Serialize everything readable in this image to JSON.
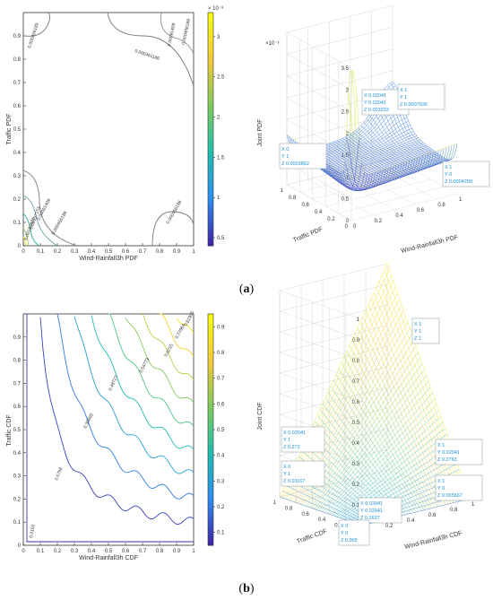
{
  "panels": {
    "a": {
      "label_open": "(",
      "label_letter": "a",
      "label_close": ")"
    },
    "b": {
      "label_open": "(",
      "label_letter": "b",
      "label_close": ")"
    }
  },
  "chart_data": [
    {
      "type": "contour",
      "panel": "a-left",
      "xlabel": "Wind-Rainfall3h PDF",
      "ylabel": "Traffic PDF",
      "xlim": [
        0,
        1
      ],
      "ylim": [
        0,
        1
      ],
      "xticks": [
        "0",
        "0.1",
        "0.2",
        "0.3",
        "0.4",
        "0.5",
        "0.6",
        "0.7",
        "0.8",
        "0.9",
        "1"
      ],
      "yticks": [
        "0",
        "0.1",
        "0.2",
        "0.3",
        "0.4",
        "0.5",
        "0.6",
        "0.7",
        "0.8",
        "0.9"
      ],
      "colorbar": {
        "exponent": "× 10⁻³",
        "ticks": [
          "0.5",
          "1",
          "1.5",
          "2",
          "2.5",
          "3"
        ],
        "range": [
          0.4,
          3.3
        ],
        "colors": [
          "#3e26a8",
          "#2d8ef0",
          "#1ebfb0",
          "#7fcb5d",
          "#f2c93b",
          "#f9fb0e"
        ]
      },
      "contour_labels": [
        "0.000456189",
        "0.000461186",
        "0.00091409",
        "0.000456189",
        "0.00091409",
        "0.000456189",
        "0.000456189",
        "0.00137153",
        "0.00183428"
      ]
    },
    {
      "type": "surface",
      "panel": "a-right",
      "xlabel": "Wind-Rainfall3h PDF",
      "ylabel": "Traffic PDF",
      "zlabel": "Joint PDF",
      "zexponent": "×10⁻³",
      "zticks": [
        "0",
        "0.5",
        "1",
        "1.5",
        "2",
        "2.5",
        "3",
        "3.5"
      ],
      "xticks": [
        "0",
        "0.2",
        "0.4",
        "0.6",
        "0.8",
        "1"
      ],
      "yticks": [
        "0",
        "0.2",
        "0.4",
        "0.6",
        "0.8",
        "1"
      ],
      "datatips": [
        {
          "x": "X 0.02041",
          "y": "Y 0.02041",
          "z": "Z 0.003293"
        },
        {
          "x": "X 1",
          "y": "Y 1",
          "z": "Z 0.0007936"
        },
        {
          "x": "X 0",
          "y": "Y 1",
          "z": "Z 0.0003862"
        },
        {
          "x": "X 1",
          "y": "Y 0",
          "z": "Z 0.0004299"
        }
      ]
    },
    {
      "type": "contour",
      "panel": "b-left",
      "xlabel": "Wind-Rainfall3h CDF",
      "ylabel": "Traffic CDF",
      "xlim": [
        0,
        1
      ],
      "ylim": [
        0,
        1
      ],
      "xticks": [
        "0",
        "0.1",
        "0.2",
        "0.3",
        "0.4",
        "0.5",
        "0.6",
        "0.7",
        "0.8",
        "0.9",
        "1"
      ],
      "yticks": [
        "0",
        "0.1",
        "0.2",
        "0.3",
        "0.4",
        "0.5",
        "0.6",
        "0.7",
        "0.8",
        "0.9"
      ],
      "colorbar": {
        "ticks": [
          "0.1",
          "0.2",
          "0.3",
          "0.4",
          "0.5",
          "0.6",
          "0.7",
          "0.8",
          "0.9"
        ],
        "range": [
          0.05,
          0.95
        ],
        "colors": [
          "#3e26a8",
          "#2d8ef0",
          "#1ebfb0",
          "#7fcb5d",
          "#f2c93b",
          "#f9fb0e"
        ]
      },
      "levels": [
        0.1,
        0.2,
        0.3,
        0.4,
        0.5,
        0.6,
        0.7,
        0.8,
        0.9
      ],
      "contour_labels": [
        "0.0101",
        "0.0756",
        "0.0756",
        "0.39602",
        "0.48727",
        "0.54773",
        "0.6215",
        "0.72964",
        "0.81905"
      ]
    },
    {
      "type": "surface",
      "panel": "b-right",
      "xlabel": "Wind-Rainfall3h CDF",
      "ylabel": "Traffic CDF",
      "zlabel": "Joint CDF",
      "zticks": [
        "0",
        "0.1",
        "0.2",
        "0.3",
        "0.4",
        "0.5",
        "0.6",
        "0.7",
        "0.8",
        "0.9",
        "1"
      ],
      "xticks": [
        "0",
        "0.2",
        "0.4",
        "0.6",
        "0.8",
        "1"
      ],
      "yticks": [
        "0",
        "0.2",
        "0.4",
        "0.6",
        "0.8",
        "1"
      ],
      "datatips": [
        {
          "x": "X 1",
          "y": "Y 1",
          "z": "Z 1"
        },
        {
          "x": "X 0.02041",
          "y": "Y 1",
          "z": "Z 0.272"
        },
        {
          "x": "X 1",
          "y": "Y 0.02041",
          "z": "Z 0.2763"
        },
        {
          "x": "X 0",
          "y": "Y 1",
          "z": "Z 0.01167"
        },
        {
          "x": "X 1",
          "y": "Y 0",
          "z": "Z 0.005667"
        },
        {
          "x": "X 0.02041",
          "y": "Y 0.02041",
          "z": "Z 0.1637"
        },
        {
          "x": "X 0",
          "y": "Y 0",
          "z": "Z 0.005"
        }
      ]
    }
  ]
}
